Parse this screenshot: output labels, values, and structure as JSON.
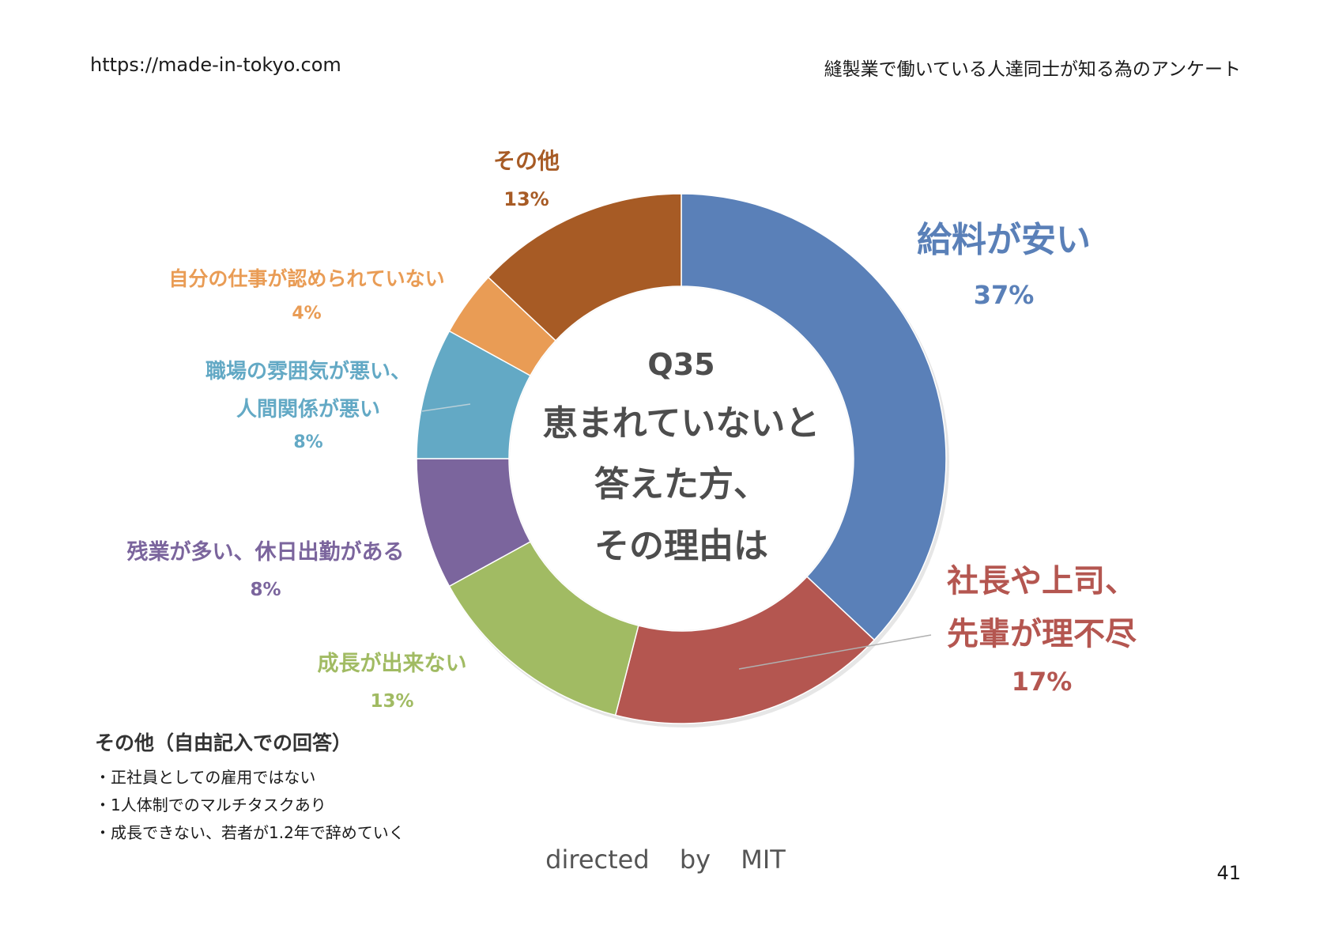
{
  "header": {
    "url": "https://made-in-tokyo.com",
    "title": "縫製業で働いている人達同士が知る為のアンケート"
  },
  "chart_data": {
    "type": "donut",
    "center": {
      "title": "Q35",
      "lines": [
        "恵まれていないと",
        "答えた方、",
        "その理由は"
      ]
    },
    "slices": [
      {
        "label_lines": [
          "給料が安い"
        ],
        "value": 37,
        "value_label": "37%",
        "color": "#5a80b8"
      },
      {
        "label_lines": [
          "社長や上司、",
          "先輩が理不尽"
        ],
        "value": 17,
        "value_label": "17%",
        "color": "#b45650"
      },
      {
        "label_lines": [
          "成長が出来ない"
        ],
        "value": 13,
        "value_label": "13%",
        "color": "#a1bb63"
      },
      {
        "label_lines": [
          "残業が多い、休日出勤がある"
        ],
        "value": 8,
        "value_label": "8%",
        "color": "#7b659d"
      },
      {
        "label_lines": [
          "職場の雰囲気が悪い、",
          "人間関係が悪い"
        ],
        "value": 8,
        "value_label": "8%",
        "color": "#63a9c5"
      },
      {
        "label_lines": [
          "自分の仕事が認められていない"
        ],
        "value": 4,
        "value_label": "4%",
        "color": "#e99c55"
      },
      {
        "label_lines": [
          "その他"
        ],
        "value": 13,
        "value_label": "13%",
        "color": "#a75b25"
      }
    ]
  },
  "notes": {
    "title": "その他（自由記入での回答）",
    "items": [
      "・正社員としての雇用ではない",
      "・1人体制でのマルチタスクあり",
      "・成長できない、若者が1.2年で辞めていく"
    ]
  },
  "footer": {
    "director": "directed by MIT",
    "page_number": "41"
  }
}
